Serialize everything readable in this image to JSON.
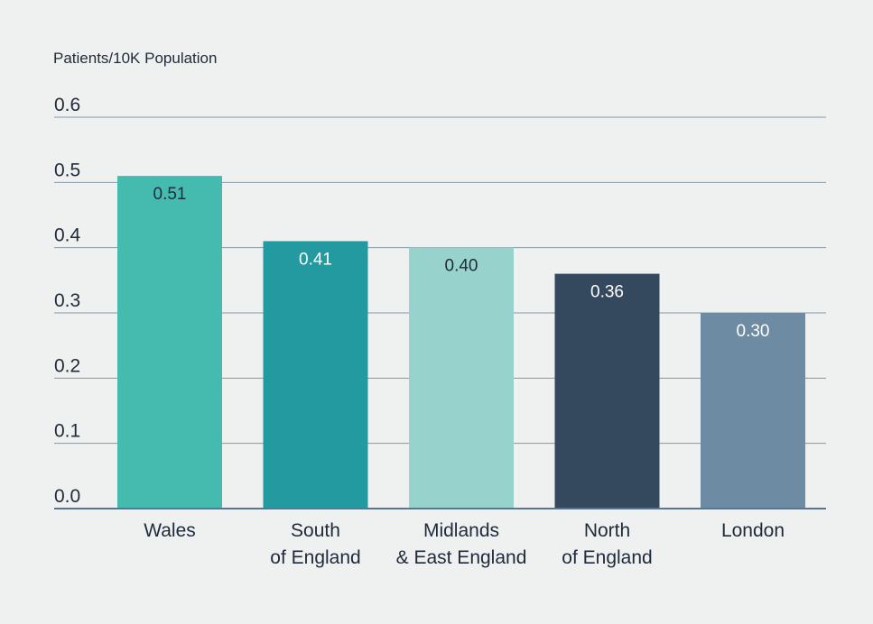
{
  "chart_data": {
    "type": "bar",
    "ylabel": "Patients/10K Population",
    "xlabel": "",
    "title": "",
    "ylim": [
      0,
      0.6
    ],
    "yticks": [
      "0.0",
      "0.1",
      "0.2",
      "0.3",
      "0.4",
      "0.5",
      "0.6"
    ],
    "grid": true,
    "categories": [
      [
        "Wales"
      ],
      [
        "South",
        "of England"
      ],
      [
        "Midlands",
        "& East England"
      ],
      [
        "North",
        "of England"
      ],
      [
        "London"
      ]
    ],
    "values": [
      0.51,
      0.41,
      0.4,
      0.36,
      0.3
    ],
    "value_labels": [
      "0.51",
      "0.41",
      "0.40",
      "0.36",
      "0.30"
    ],
    "colors": [
      "#45bbb0",
      "#239a9f",
      "#97d2cc",
      "#34495e",
      "#6d8ba3"
    ],
    "label_colors": [
      "#1f2a3a",
      "#ffffff",
      "#1f2a3a",
      "#ffffff",
      "#ffffff"
    ],
    "grid_color": "#8597a8",
    "axis_color": "#5b7590",
    "text_color": "#1f2a3a",
    "background": "#eef1f0"
  }
}
